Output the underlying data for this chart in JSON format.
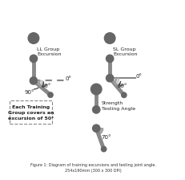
{
  "title": "Figure 1: Diagram of training excursions and testing joint angle.\n254x190mm (300 x 300 DPI)",
  "background_color": "#f0f0f0",
  "limb_color": "#888888",
  "joint_color": "#666666",
  "text_color": "#222222",
  "ll_label": "LL Group\nExcursion",
  "sl_label": "SL Group\nExcursion",
  "strength_label": "Strength\nTesting Angle",
  "box_label": "Each Training\nGroup covers an\nexcursion of 50°",
  "angle_0": "0°",
  "angle_40": "40°",
  "angle_50": "50°",
  "angle_70": "70°",
  "angle_90": "90°"
}
